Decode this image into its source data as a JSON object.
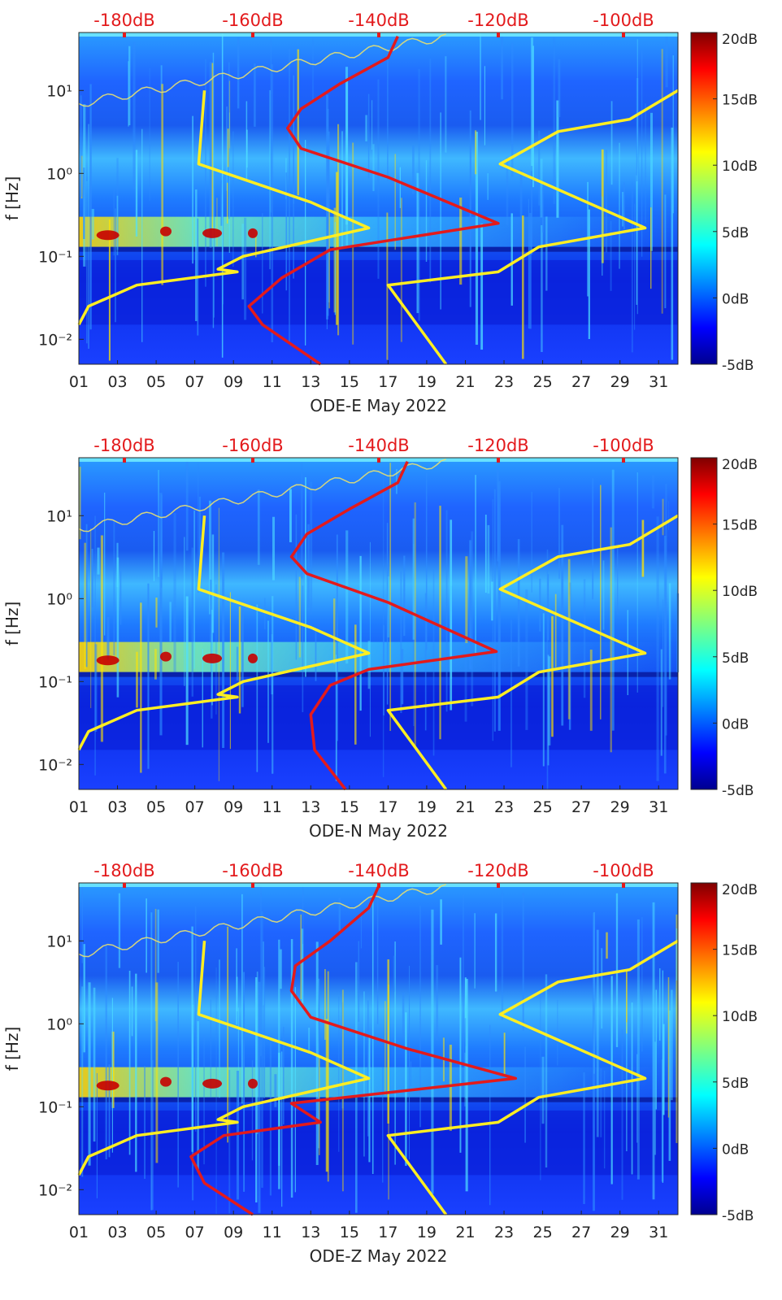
{
  "chart_data": [
    {
      "type": "heatmap",
      "xlabel": "ODE-E May 2022",
      "ylabel": "f [Hz]",
      "x_ticks": [
        "01",
        "03",
        "05",
        "07",
        "09",
        "11",
        "13",
        "15",
        "17",
        "19",
        "21",
        "23",
        "25",
        "27",
        "29",
        "31"
      ],
      "y_ticks": [
        "10⁻²",
        "10⁻¹",
        "10⁰",
        "10¹"
      ],
      "top_axis_ticks": [
        "-180dB",
        "-160dB",
        "-140dB",
        "-120dB",
        "-100dB"
      ],
      "colorbar": {
        "ticks": [
          "20dB",
          "15dB",
          "10dB",
          "5dB",
          "0dB",
          "-5dB"
        ],
        "range": [
          -5,
          20
        ],
        "colormap": "jet"
      },
      "x_range_days": [
        1,
        32
      ],
      "y_range_hz": [
        0.005,
        50
      ],
      "y_scale": "log",
      "series": [
        {
          "color": "#ffee22",
          "points": [
            [
              1,
              0.015
            ],
            [
              1.5,
              0.025
            ],
            [
              4,
              0.045
            ],
            [
              9.2,
              0.065
            ],
            [
              8.2,
              0.07
            ],
            [
              9.5,
              0.1
            ],
            [
              16,
              0.22
            ],
            [
              13,
              0.45
            ],
            [
              7.2,
              1.3
            ],
            [
              7.5,
              10
            ]
          ]
        },
        {
          "color": "#ffee22",
          "points": [
            [
              20,
              0.005
            ],
            [
              17,
              0.045
            ],
            [
              22.7,
              0.065
            ],
            [
              24.8,
              0.13
            ],
            [
              30.3,
              0.22
            ],
            [
              22.8,
              1.3
            ],
            [
              25.8,
              3.2
            ],
            [
              29.5,
              4.5
            ],
            [
              32,
              10
            ]
          ]
        },
        {
          "color": "#e31a1c",
          "points": [
            [
              13.5,
              0.005
            ],
            [
              10.5,
              0.015
            ],
            [
              9.8,
              0.025
            ],
            [
              11.5,
              0.055
            ],
            [
              14,
              0.12
            ],
            [
              22.7,
              0.25
            ],
            [
              17,
              0.9
            ],
            [
              12.5,
              2
            ],
            [
              11.8,
              3.5
            ],
            [
              12.5,
              6
            ],
            [
              14.5,
              12
            ],
            [
              17,
              25
            ],
            [
              17.5,
              45
            ]
          ]
        }
      ]
    },
    {
      "type": "heatmap",
      "xlabel": "ODE-N May 2022",
      "ylabel": "f [Hz]",
      "x_ticks": [
        "01",
        "03",
        "05",
        "07",
        "09",
        "11",
        "13",
        "15",
        "17",
        "19",
        "21",
        "23",
        "25",
        "27",
        "29",
        "31"
      ],
      "y_ticks": [
        "10⁻²",
        "10⁻¹",
        "10⁰",
        "10¹"
      ],
      "top_axis_ticks": [
        "-180dB",
        "-160dB",
        "-140dB",
        "-120dB",
        "-100dB"
      ],
      "colorbar": {
        "ticks": [
          "20dB",
          "15dB",
          "10dB",
          "5dB",
          "0dB",
          "-5dB"
        ],
        "range": [
          -5,
          20
        ],
        "colormap": "jet"
      },
      "x_range_days": [
        1,
        32
      ],
      "y_range_hz": [
        0.005,
        50
      ],
      "y_scale": "log",
      "series": [
        {
          "color": "#ffee22",
          "points": [
            [
              1,
              0.015
            ],
            [
              1.5,
              0.025
            ],
            [
              4,
              0.045
            ],
            [
              9.2,
              0.065
            ],
            [
              8.2,
              0.07
            ],
            [
              9.5,
              0.1
            ],
            [
              16,
              0.22
            ],
            [
              13,
              0.45
            ],
            [
              7.2,
              1.3
            ],
            [
              7.5,
              10
            ]
          ]
        },
        {
          "color": "#ffee22",
          "points": [
            [
              20,
              0.005
            ],
            [
              17,
              0.045
            ],
            [
              22.7,
              0.065
            ],
            [
              24.8,
              0.13
            ],
            [
              30.3,
              0.22
            ],
            [
              22.8,
              1.3
            ],
            [
              25.8,
              3.2
            ],
            [
              29.5,
              4.5
            ],
            [
              32,
              10
            ]
          ]
        },
        {
          "color": "#e31a1c",
          "points": [
            [
              14.8,
              0.005
            ],
            [
              13.2,
              0.015
            ],
            [
              13,
              0.04
            ],
            [
              14,
              0.09
            ],
            [
              16,
              0.14
            ],
            [
              22.6,
              0.23
            ],
            [
              17,
              0.9
            ],
            [
              12.8,
              2
            ],
            [
              12,
              3.2
            ],
            [
              12.8,
              6
            ],
            [
              15,
              12
            ],
            [
              17.5,
              25
            ],
            [
              18,
              45
            ]
          ]
        }
      ]
    },
    {
      "type": "heatmap",
      "xlabel": "ODE-Z May 2022",
      "ylabel": "f [Hz]",
      "x_ticks": [
        "01",
        "03",
        "05",
        "07",
        "09",
        "11",
        "13",
        "15",
        "17",
        "19",
        "21",
        "23",
        "25",
        "27",
        "29",
        "31"
      ],
      "y_ticks": [
        "10⁻²",
        "10⁻¹",
        "10⁰",
        "10¹"
      ],
      "top_axis_ticks": [
        "-180dB",
        "-160dB",
        "-140dB",
        "-120dB",
        "-100dB"
      ],
      "colorbar": {
        "ticks": [
          "20dB",
          "15dB",
          "10dB",
          "5dB",
          "0dB",
          "-5dB"
        ],
        "range": [
          -5,
          20
        ],
        "colormap": "jet"
      },
      "x_range_days": [
        1,
        32
      ],
      "y_range_hz": [
        0.005,
        50
      ],
      "y_scale": "log",
      "series": [
        {
          "color": "#ffee22",
          "points": [
            [
              1,
              0.015
            ],
            [
              1.5,
              0.025
            ],
            [
              4,
              0.045
            ],
            [
              9.2,
              0.065
            ],
            [
              8.2,
              0.07
            ],
            [
              9.5,
              0.1
            ],
            [
              16,
              0.22
            ],
            [
              13,
              0.45
            ],
            [
              7.2,
              1.3
            ],
            [
              7.5,
              10
            ]
          ]
        },
        {
          "color": "#ffee22",
          "points": [
            [
              20,
              0.005
            ],
            [
              17,
              0.045
            ],
            [
              22.7,
              0.065
            ],
            [
              24.8,
              0.13
            ],
            [
              30.3,
              0.22
            ],
            [
              22.8,
              1.3
            ],
            [
              25.8,
              3.2
            ],
            [
              29.5,
              4.5
            ],
            [
              32,
              10
            ]
          ]
        },
        {
          "color": "#e31a1c",
          "points": [
            [
              10,
              0.005
            ],
            [
              7.5,
              0.012
            ],
            [
              6.8,
              0.025
            ],
            [
              8.5,
              0.045
            ],
            [
              13.5,
              0.065
            ],
            [
              12,
              0.11
            ],
            [
              23.6,
              0.22
            ],
            [
              18,
              0.5
            ],
            [
              13,
              1.2
            ],
            [
              12,
              2.5
            ],
            [
              12.2,
              5
            ],
            [
              14,
              10
            ],
            [
              16,
              25
            ],
            [
              16.5,
              45
            ]
          ]
        }
      ]
    }
  ]
}
